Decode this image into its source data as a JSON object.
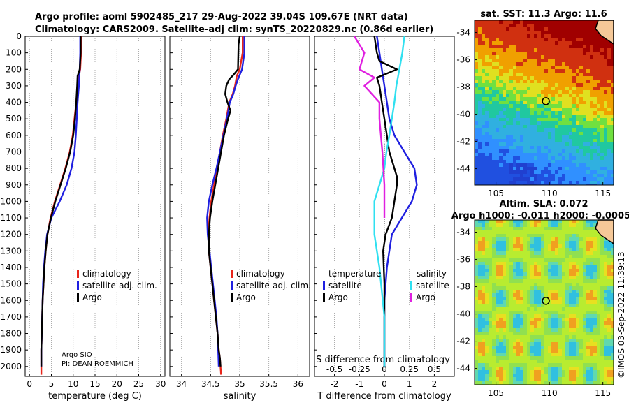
{
  "title": {
    "line1": "Argo profile: aoml 5902485_217 29-Aug-2022 39.04S 109.67E (NRT data)",
    "line2": "Climatology: CARS2009. Satellite-adj clim: synTS_20220829.nc (0.86d earlier)"
  },
  "colors": {
    "climatology": "#e8251b",
    "satellite": "#1f1fe0",
    "argo": "#000000",
    "argo_sal": "#e020e0",
    "sat_sal": "#30e0f0"
  },
  "yaxis": {
    "ticks": [
      "0",
      "100",
      "200",
      "300",
      "400",
      "500",
      "600",
      "700",
      "800",
      "900",
      "1000",
      "1100",
      "1200",
      "1300",
      "1400",
      "1500",
      "1600",
      "1700",
      "1800",
      "1900",
      "2000"
    ]
  },
  "credit": {
    "line1": "Argo SIO",
    "line2": "PI: DEAN ROEMMICH"
  },
  "legend_profiles": {
    "climatology": "climatology",
    "satellite": "satellite-adj. clim.",
    "argo": "Argo"
  },
  "legend_salinity_panel": {
    "climatology": "climatology",
    "satellite": "satellite-adj. clim.",
    "argo": "Argo"
  },
  "legend_diff": {
    "t_header": "temperature",
    "s_header": "salinity",
    "satellite": "satellite",
    "argo": "Argo"
  },
  "map_sst": {
    "title": "sat. SST: 11.3 Argo: 11.6"
  },
  "map_sla": {
    "title1": "Altim. SLA: 0.072",
    "title2": "Argo h1000: -0.011 h2000: -0.0005"
  },
  "watermark": "©IMOS 03-Sep-2022 11:39:13",
  "chart_data": [
    {
      "type": "line",
      "title": "",
      "xlabel": "temperature (deg C)",
      "ylabel": "",
      "xlim": [
        -1,
        31
      ],
      "ylim": [
        2060,
        0
      ],
      "xticks": [
        "0",
        "5",
        "10",
        "15",
        "20",
        "25",
        "30"
      ],
      "series": [
        {
          "name": "climatology",
          "x": [
            11.8,
            11.8,
            11.6,
            11.2,
            11.0,
            10.7,
            10.3,
            9.9,
            9.2,
            8.2,
            7.0,
            5.8,
            4.8,
            4.1,
            3.7,
            3.4,
            3.2,
            3.0,
            2.9,
            2.8,
            2.7,
            2.7,
            2.7
          ],
          "y": [
            0,
            100,
            200,
            250,
            300,
            400,
            500,
            600,
            700,
            800,
            900,
            1000,
            1100,
            1200,
            1300,
            1400,
            1500,
            1600,
            1700,
            1800,
            1900,
            2000,
            2050
          ]
        },
        {
          "name": "satellite-adj. clim.",
          "x": [
            11.6,
            11.6,
            11.5,
            11.4,
            11.3,
            11.0,
            10.8,
            10.6,
            10.3,
            9.6,
            8.5,
            6.9,
            5.0,
            4.0,
            3.6,
            3.3,
            3.1,
            3.0,
            2.9,
            2.8,
            2.7,
            2.7
          ],
          "y": [
            0,
            100,
            200,
            250,
            300,
            400,
            500,
            600,
            700,
            800,
            900,
            1000,
            1100,
            1200,
            1300,
            1400,
            1500,
            1600,
            1700,
            1800,
            1900,
            2000
          ]
        },
        {
          "name": "Argo",
          "x": [
            11.7,
            11.7,
            11.5,
            11.0,
            10.9,
            10.7,
            10.4,
            10.0,
            9.3,
            8.3,
            7.1,
            5.9,
            4.9,
            4.1,
            3.7,
            3.4,
            3.2,
            3.0,
            2.9,
            2.8,
            2.7,
            2.7
          ],
          "y": [
            0,
            100,
            200,
            240,
            300,
            400,
            500,
            600,
            700,
            800,
            900,
            1000,
            1100,
            1200,
            1300,
            1400,
            1500,
            1600,
            1700,
            1800,
            1900,
            2000
          ]
        }
      ]
    },
    {
      "type": "line",
      "title": "",
      "xlabel": "salinity",
      "ylabel": "",
      "xlim": [
        33.8,
        36.2
      ],
      "ylim": [
        2060,
        0
      ],
      "xticks": [
        "34",
        "34.5",
        "35",
        "35.5",
        "36"
      ],
      "series": [
        {
          "name": "climatology",
          "x": [
            35.05,
            35.05,
            35.0,
            34.95,
            34.92,
            34.88,
            34.82,
            34.77,
            34.71,
            34.66,
            34.61,
            34.56,
            34.51,
            34.48,
            34.46,
            34.47,
            34.5,
            34.53,
            34.56,
            34.59,
            34.62,
            34.64,
            34.66,
            34.67,
            34.68
          ],
          "y": [
            0,
            100,
            200,
            240,
            300,
            350,
            400,
            500,
            600,
            700,
            800,
            900,
            1000,
            1100,
            1200,
            1300,
            1400,
            1500,
            1600,
            1700,
            1800,
            1900,
            1950,
            2000,
            2050
          ]
        },
        {
          "name": "satellite-adj. clim.",
          "x": [
            35.08,
            35.08,
            35.04,
            34.98,
            34.93,
            34.89,
            34.83,
            34.78,
            34.72,
            34.66,
            34.6,
            34.53,
            34.47,
            34.44,
            34.45,
            34.48,
            34.51,
            34.54,
            34.57,
            34.6,
            34.62,
            34.63,
            34.64
          ],
          "y": [
            0,
            100,
            200,
            250,
            300,
            350,
            400,
            500,
            600,
            700,
            800,
            900,
            1000,
            1100,
            1200,
            1300,
            1400,
            1500,
            1600,
            1700,
            1800,
            1900,
            2000
          ]
        },
        {
          "name": "Argo",
          "x": [
            35.0,
            34.98,
            34.97,
            34.9,
            34.82,
            34.77,
            34.75,
            34.79,
            34.84,
            34.8,
            34.73,
            34.68,
            34.63,
            34.58,
            34.53,
            34.49,
            34.47,
            34.47,
            34.5,
            34.53,
            34.56,
            34.59,
            34.62,
            34.64,
            34.66,
            34.67
          ],
          "y": [
            0,
            50,
            200,
            230,
            260,
            300,
            350,
            400,
            450,
            500,
            600,
            700,
            800,
            900,
            1000,
            1100,
            1200,
            1300,
            1400,
            1500,
            1600,
            1700,
            1800,
            1900,
            1950,
            2000
          ]
        }
      ]
    },
    {
      "type": "line",
      "title": "",
      "xlabel": "T difference from climatology",
      "ylabel": "",
      "secondary_xlabel": "S difference from climatology",
      "xlim": [
        -2.8,
        2.8
      ],
      "ylim": [
        2060,
        0
      ],
      "xticks": [
        "-2",
        "-1",
        "0",
        "1",
        "2"
      ],
      "secondary_xticks": [
        "-0.5",
        "-0.25",
        "0",
        "0.25",
        "0.5"
      ],
      "series": [
        {
          "name": "temperature satellite",
          "x": [
            -0.3,
            -0.2,
            -0.1,
            0.0,
            0.1,
            0.2,
            0.4,
            0.8,
            1.2,
            1.3,
            1.1,
            0.7,
            0.3,
            0.2,
            0.1,
            0.05,
            0.0,
            0.0,
            0.0
          ],
          "y": [
            0,
            100,
            200,
            300,
            400,
            500,
            600,
            700,
            800,
            900,
            1000,
            1100,
            1200,
            1300,
            1400,
            1500,
            1600,
            1800,
            2000
          ]
        },
        {
          "name": "temperature Argo",
          "x": [
            -0.4,
            -0.3,
            -0.2,
            0.5,
            -0.3,
            -0.2,
            -0.1,
            0.0,
            0.2,
            0.4,
            0.5,
            0.5,
            0.4,
            0.3,
            0.05,
            -0.05,
            0.0,
            0.0,
            0.0
          ],
          "y": [
            0,
            100,
            150,
            200,
            250,
            300,
            400,
            500,
            700,
            800,
            850,
            900,
            1000,
            1100,
            1200,
            1300,
            1500,
            1800,
            2000
          ]
        },
        {
          "name": "salinity satellite",
          "x": [
            0.2,
            0.18,
            0.15,
            0.12,
            0.1,
            0.05,
            0.02,
            0.0,
            -0.05,
            -0.1,
            -0.1,
            -0.05,
            0.0,
            0.0
          ],
          "y": [
            0,
            100,
            200,
            300,
            400,
            600,
            700,
            800,
            900,
            1000,
            1200,
            1400,
            1700,
            2000
          ]
        },
        {
          "name": "salinity Argo",
          "x": [
            -0.3,
            -0.2,
            -0.25,
            -0.1,
            -0.2,
            -0.05,
            -0.05,
            -0.02,
            0.0,
            0.0
          ],
          "y": [
            0,
            100,
            200,
            250,
            300,
            400,
            500,
            700,
            900,
            1100
          ]
        }
      ]
    },
    {
      "type": "heatmap",
      "title": "sat. SST: 11.3 Argo: 11.6",
      "xlim": [
        103,
        116
      ],
      "ylim": [
        -45.2,
        -33.1
      ],
      "xticks": [
        "105",
        "110",
        "115"
      ],
      "yticks": [
        "-34",
        "-36",
        "-38",
        "-40",
        "-42",
        "-44"
      ],
      "marker": {
        "lon": 109.67,
        "lat": -39.04
      }
    },
    {
      "type": "heatmap",
      "title": "Altim. SLA: 0.072",
      "xlim": [
        103,
        116
      ],
      "ylim": [
        -45.2,
        -33.1
      ],
      "xticks": [
        "105",
        "110",
        "115"
      ],
      "yticks": [
        "-34",
        "-36",
        "-38",
        "-40",
        "-42",
        "-44"
      ],
      "marker": {
        "lon": 109.67,
        "lat": -39.04
      }
    }
  ]
}
